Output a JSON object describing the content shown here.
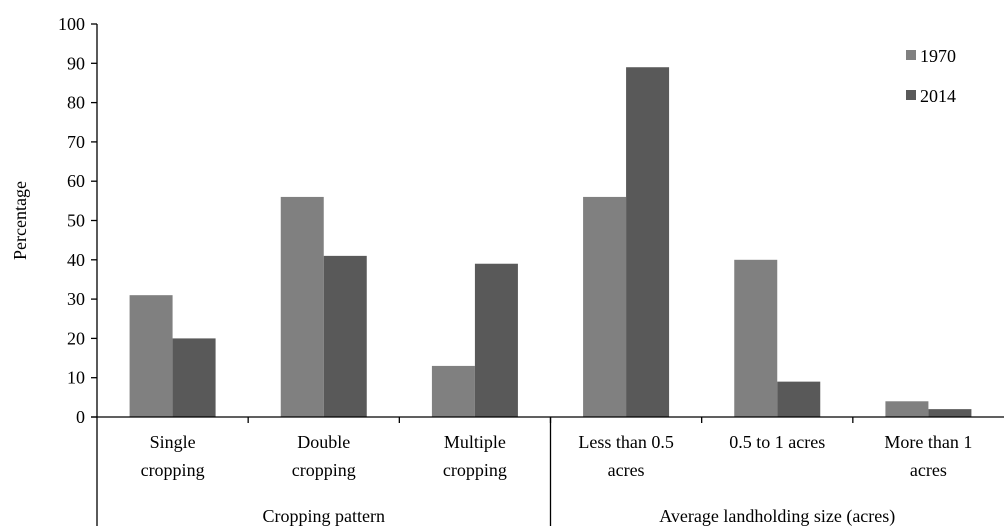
{
  "chart_data": {
    "type": "bar",
    "title": "",
    "xlabel": "",
    "ylabel": "Percentage",
    "ylim": [
      0,
      100
    ],
    "yticks": [
      0,
      10,
      20,
      30,
      40,
      50,
      60,
      70,
      80,
      90,
      100
    ],
    "categories": [
      [
        "Single",
        "cropping"
      ],
      [
        "Double",
        "cropping"
      ],
      [
        "Multiple",
        "cropping"
      ],
      [
        "Less than 0.5",
        "acres"
      ],
      [
        "0.5 to 1 acres"
      ],
      [
        "More than 1",
        "acres"
      ]
    ],
    "groups": [
      {
        "label": "Cropping pattern",
        "categories": 3
      },
      {
        "label": "Average landholding size (acres)",
        "categories": 3
      }
    ],
    "series": [
      {
        "name": "1970",
        "color": "#808080",
        "values": [
          31,
          56,
          13,
          56,
          40,
          4
        ]
      },
      {
        "name": "2014",
        "color": "#595959",
        "values": [
          20,
          41,
          39,
          89,
          9,
          2
        ]
      }
    ],
    "legend": "top-right",
    "grid": false
  }
}
